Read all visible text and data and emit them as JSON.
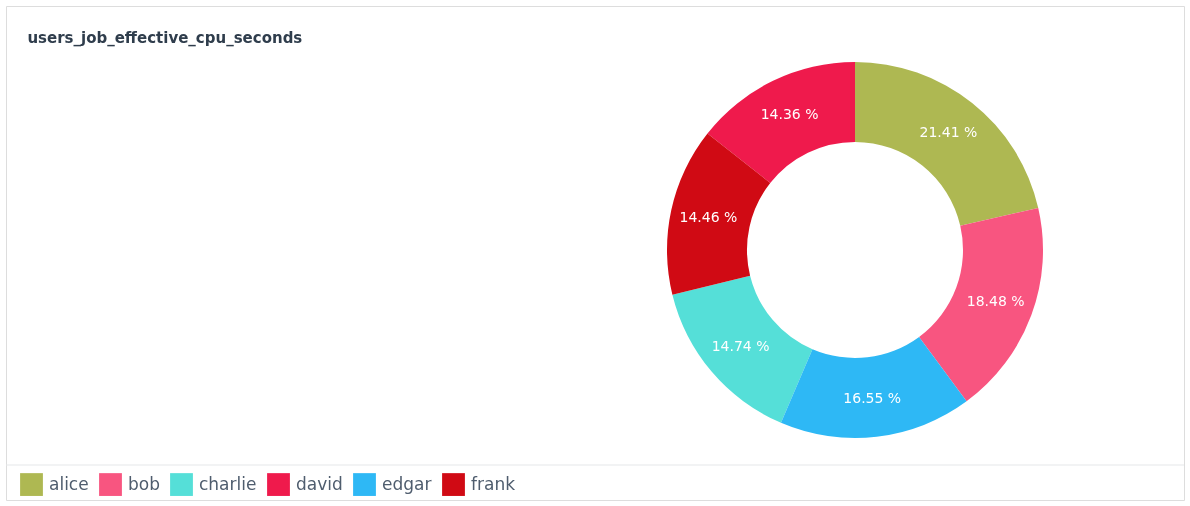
{
  "chart_data": {
    "type": "donut",
    "title": "users_job_effective_cpu_seconds",
    "categories": [
      "alice",
      "bob",
      "charlie",
      "david",
      "edgar",
      "frank"
    ],
    "values": [
      21.41,
      18.48,
      14.74,
      14.36,
      16.55,
      14.46
    ],
    "colors": [
      "#aeb852",
      "#f85580",
      "#55dfd8",
      "#ef1a4c",
      "#2eb8f5",
      "#d00a14"
    ],
    "value_labels": [
      "21.41 %",
      "18.48 %",
      "14.74 %",
      "14.36 %",
      "16.55 %",
      "14.46 %"
    ],
    "legend": "bottom left"
  }
}
